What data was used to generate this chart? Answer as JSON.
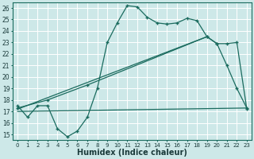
{
  "xlabel": "Humidex (Indice chaleur)",
  "background_color": "#cde8e8",
  "line_color": "#1a6b5e",
  "xlim": [
    -0.5,
    23.5
  ],
  "ylim": [
    14.5,
    26.5
  ],
  "xticks": [
    0,
    1,
    2,
    3,
    4,
    5,
    6,
    7,
    8,
    9,
    10,
    11,
    12,
    13,
    14,
    15,
    16,
    17,
    18,
    19,
    20,
    21,
    22,
    23
  ],
  "yticks": [
    15,
    16,
    17,
    18,
    19,
    20,
    21,
    22,
    23,
    24,
    25,
    26
  ],
  "line1_x": [
    0,
    1,
    2,
    3,
    4,
    5,
    6,
    7,
    8,
    9,
    10,
    11,
    12,
    13,
    14,
    15,
    16,
    17,
    18,
    19,
    20,
    21,
    22,
    23
  ],
  "line1_y": [
    17.5,
    16.5,
    17.5,
    17.5,
    15.5,
    14.8,
    15.3,
    16.5,
    19.0,
    23.0,
    24.7,
    26.2,
    26.1,
    25.2,
    24.7,
    24.6,
    24.7,
    25.1,
    24.9,
    23.5,
    22.9,
    21.0,
    19.0,
    17.3
  ],
  "line2_x": [
    0,
    3,
    7,
    19,
    20,
    21,
    22,
    23
  ],
  "line2_y": [
    17.3,
    18.0,
    19.3,
    23.5,
    22.9,
    22.9,
    23.0,
    17.2
  ],
  "line3_x": [
    0,
    23
  ],
  "line3_y": [
    17.0,
    17.3
  ],
  "line4_x": [
    0,
    19
  ],
  "line4_y": [
    17.2,
    23.5
  ],
  "grid_color": "#ffffff",
  "font_size": 7
}
